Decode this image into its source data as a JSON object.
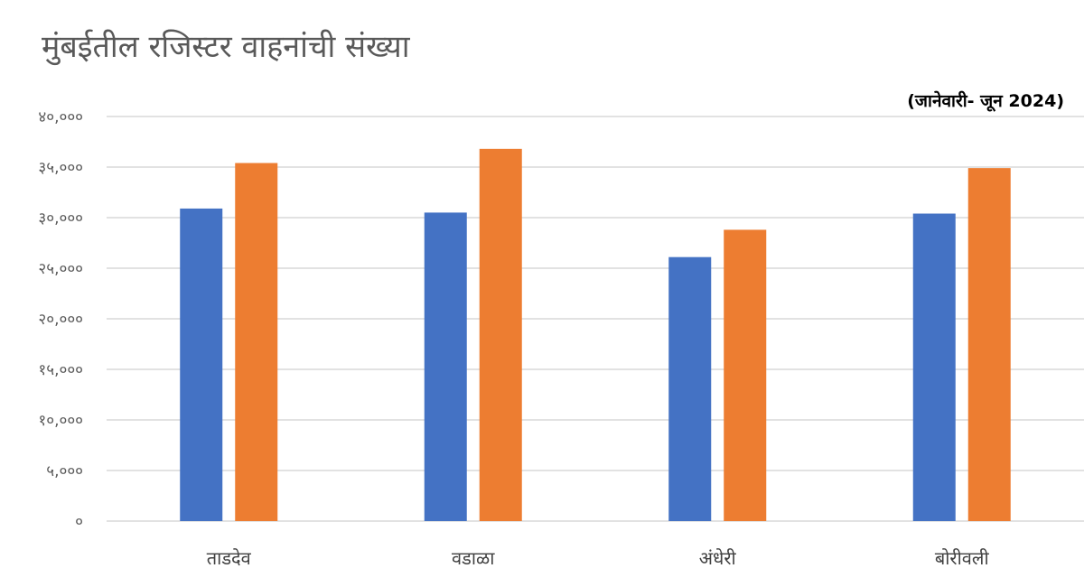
{
  "chart_data": {
    "type": "bar",
    "title": "मुंबईतील रजिस्टर वाहनांची संख्या",
    "subtitle": "(जानेवारी- जून 2024)",
    "categories": [
      "ताडदेव",
      "वडाळा",
      "अंधेरी",
      "बोरीवली"
    ],
    "series": [
      {
        "values": [
          30900,
          30500,
          26100,
          30400
        ],
        "color": "#4472C4"
      },
      {
        "values": [
          35400,
          36800,
          28800,
          34900
        ],
        "color": "#ED7D31"
      }
    ],
    "yticks": [
      "०",
      "५,०००",
      "१०,०००",
      "१५,०००",
      "२०,०००",
      "२५,०००",
      "३०,०००",
      "३५,०००",
      "४०,०००"
    ],
    "ylim": [
      0,
      40000
    ],
    "ytick_step": 5000,
    "grid": true,
    "grid_color": "#d9d9d9",
    "legend": "none",
    "xlabel": "",
    "ylabel": ""
  }
}
